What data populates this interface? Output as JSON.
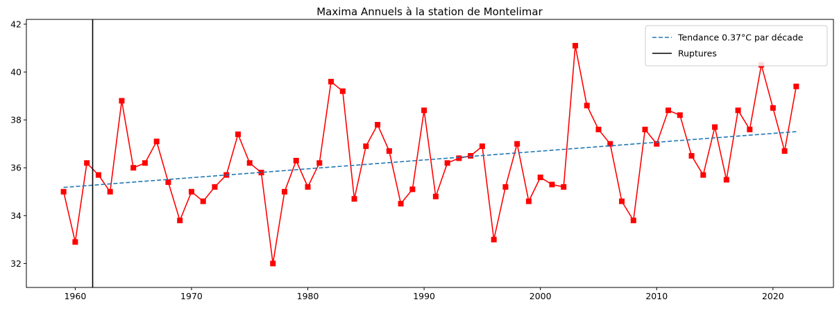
{
  "chart_data": {
    "type": "line",
    "title": "Maxima Annuels à la station de Montelimar",
    "xlabel": "",
    "ylabel": "",
    "xlim": [
      1955.8,
      2025.2
    ],
    "ylim": [
      31,
      42.2
    ],
    "xticks": [
      1960,
      1970,
      1980,
      1990,
      2000,
      2010,
      2020
    ],
    "yticks": [
      32,
      34,
      36,
      38,
      40,
      42
    ],
    "grid": false,
    "legend_position": "top-right",
    "series": [
      {
        "name": "",
        "color": "#ff0000",
        "marker": "square",
        "x": [
          1959,
          1960,
          1961,
          1962,
          1963,
          1964,
          1965,
          1966,
          1967,
          1968,
          1969,
          1970,
          1971,
          1972,
          1973,
          1974,
          1975,
          1976,
          1977,
          1978,
          1979,
          1980,
          1981,
          1982,
          1983,
          1984,
          1985,
          1986,
          1987,
          1988,
          1989,
          1990,
          1991,
          1992,
          1993,
          1994,
          1995,
          1996,
          1997,
          1998,
          1999,
          2000,
          2001,
          2002,
          2003,
          2004,
          2005,
          2006,
          2007,
          2008,
          2009,
          2010,
          2011,
          2012,
          2013,
          2014,
          2015,
          2016,
          2017,
          2018,
          2019,
          2020,
          2021,
          2022
        ],
        "values": [
          35.0,
          32.9,
          36.2,
          35.7,
          35.0,
          38.8,
          36.0,
          36.2,
          37.1,
          35.4,
          33.8,
          35.0,
          34.6,
          35.2,
          35.7,
          37.4,
          36.2,
          35.8,
          32.0,
          35.0,
          36.3,
          35.2,
          36.2,
          39.6,
          39.2,
          34.7,
          36.9,
          37.8,
          36.7,
          34.5,
          35.1,
          38.4,
          34.8,
          36.2,
          36.4,
          36.5,
          36.9,
          33.0,
          35.2,
          37.0,
          34.6,
          35.6,
          35.3,
          35.2,
          41.1,
          38.6,
          37.6,
          37.0,
          34.6,
          33.8,
          37.6,
          37.0,
          38.4,
          38.2,
          36.5,
          35.7,
          37.7,
          35.5,
          38.4,
          37.6,
          40.3,
          38.5,
          36.7,
          39.4
        ]
      },
      {
        "name": "Tendance 0.37°C par décade",
        "color": "#1f77b4",
        "style": "dashed",
        "x": [
          1959,
          2022
        ],
        "values": [
          35.18,
          37.51
        ]
      }
    ],
    "vlines": [
      {
        "name": "Ruptures",
        "color": "#000000",
        "x": 1961.5
      }
    ]
  }
}
